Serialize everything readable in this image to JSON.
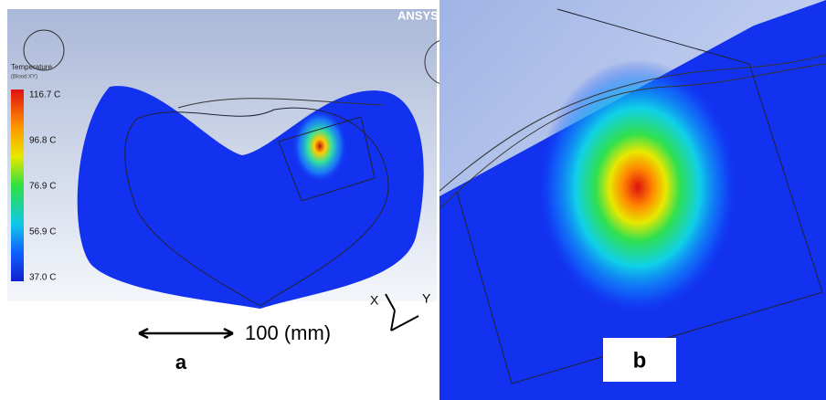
{
  "logo": "ANSYS",
  "legend": {
    "title": "Temperature",
    "subtitle": "(Blood:XY)",
    "labels": [
      "116.7 C",
      "96.8 C",
      "76.9 C",
      "56.9 C",
      "37.0 C"
    ]
  },
  "axes": {
    "x": "X",
    "y": "Y"
  },
  "scale": "100 (mm)",
  "panels": {
    "a": "a",
    "b": "b"
  }
}
